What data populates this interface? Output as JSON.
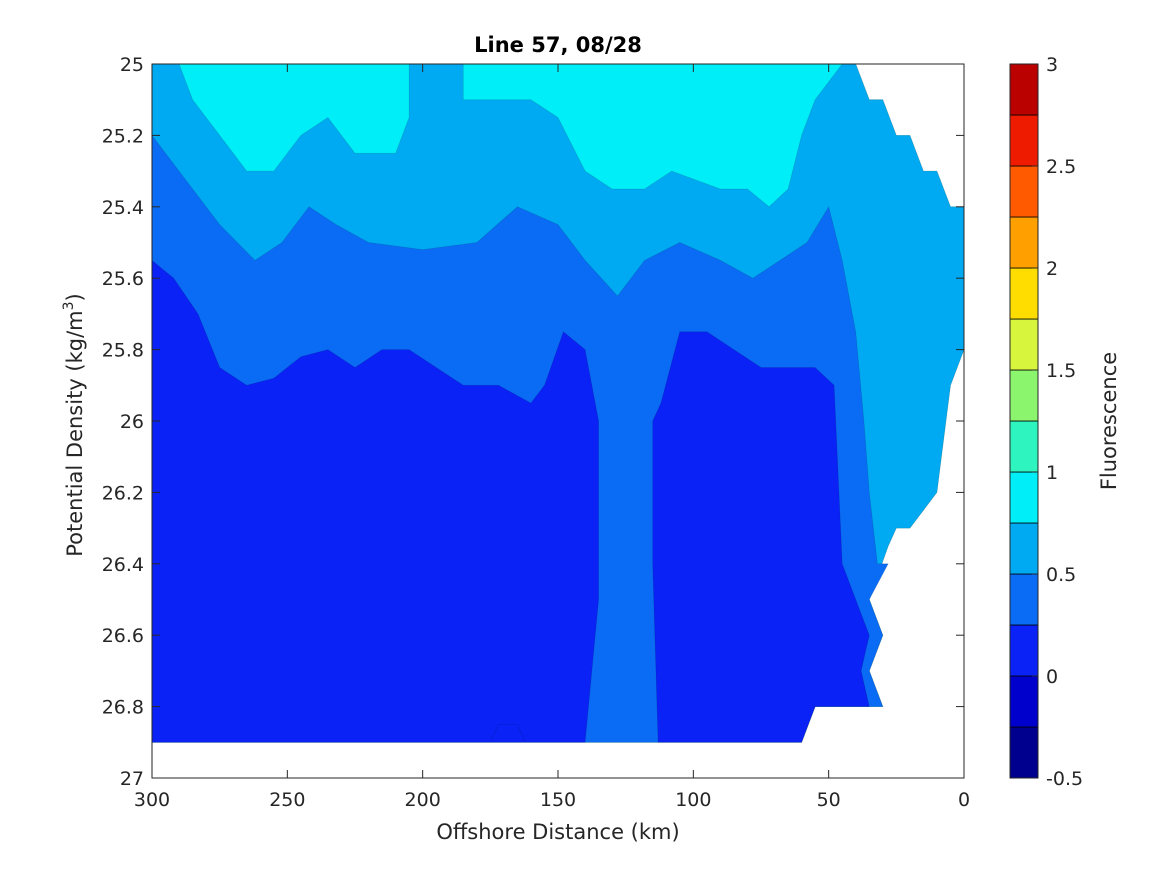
{
  "chart_data": {
    "type": "contour",
    "title": "Line 57, 08/28",
    "xlabel": "Offshore Distance (km)",
    "ylabel_main": "Potential Density (kg/m",
    "ylabel_sup": "3",
    "ylabel_close": ")",
    "colorbar_label": "Fluorescence",
    "x_axis": {
      "range": [
        300,
        0
      ],
      "reversed": true,
      "ticks": [
        300,
        250,
        200,
        150,
        100,
        50,
        0
      ],
      "tick_labels": [
        "300",
        "250",
        "200",
        "150",
        "100",
        "50",
        "0"
      ]
    },
    "y_axis": {
      "range": [
        25,
        27
      ],
      "reversed": true,
      "ticks": [
        25,
        25.2,
        25.4,
        25.6,
        25.8,
        26,
        26.2,
        26.4,
        26.6,
        26.8,
        27
      ],
      "tick_labels": [
        "25",
        "25.2",
        "25.4",
        "25.6",
        "25.8",
        "26",
        "26.2",
        "26.4",
        "26.6",
        "26.8",
        "27"
      ]
    },
    "colorbar": {
      "range": [
        -0.5,
        3
      ],
      "levels": [
        -0.5,
        -0.25,
        0,
        0.25,
        0.5,
        0.75,
        1,
        1.25,
        1.5,
        1.75,
        2,
        2.25,
        2.5,
        2.75,
        3
      ],
      "ticks": [
        -0.5,
        0,
        0.5,
        1,
        1.5,
        2,
        2.5,
        3
      ],
      "tick_labels": [
        "-0.5",
        "0",
        "0.5",
        "1",
        "1.5",
        "2",
        "2.5",
        "3"
      ],
      "colors": [
        "#00008f",
        "#0000cc",
        "#0a22f5",
        "#0a6cf5",
        "#00aaf2",
        "#00eef7",
        "#2ef5c0",
        "#8cf56e",
        "#d6f53c",
        "#ffdd00",
        "#ff9f00",
        "#ff5a00",
        "#ee1b00",
        "#bb0000"
      ]
    },
    "contour_regions": [
      {
        "level": 0.75,
        "points": [
          [
            300,
            25
          ],
          [
            40,
            25
          ],
          [
            35,
            25.1
          ],
          [
            30,
            25.1
          ],
          [
            25,
            25.2
          ],
          [
            20,
            25.2
          ],
          [
            15,
            25.3
          ],
          [
            10,
            25.3
          ],
          [
            5,
            25.4
          ],
          [
            0,
            25.4
          ],
          [
            0,
            25.8
          ],
          [
            5,
            25.9
          ],
          [
            10,
            26.2
          ],
          [
            20,
            26.3
          ],
          [
            25,
            26.3
          ],
          [
            28,
            26.35
          ],
          [
            35,
            26.5
          ],
          [
            30,
            26.6
          ],
          [
            35,
            26.7
          ],
          [
            30,
            26.8
          ],
          [
            55,
            26.8
          ],
          [
            60,
            26.9
          ],
          [
            300,
            26.9
          ]
        ]
      },
      {
        "level": 0.5,
        "points": [
          [
            300,
            25
          ],
          [
            290,
            25
          ],
          [
            285,
            25.1
          ],
          [
            275,
            25.2
          ],
          [
            265,
            25.3
          ],
          [
            255,
            25.3
          ],
          [
            245,
            25.2
          ],
          [
            235,
            25.15
          ],
          [
            225,
            25.25
          ],
          [
            210,
            25.25
          ],
          [
            205,
            25.15
          ],
          [
            205,
            25
          ],
          [
            185,
            25
          ],
          [
            185,
            25.1
          ],
          [
            160,
            25.1
          ],
          [
            150,
            25.15
          ],
          [
            140,
            25.3
          ],
          [
            130,
            25.35
          ],
          [
            118,
            25.35
          ],
          [
            108,
            25.3
          ],
          [
            90,
            25.35
          ],
          [
            80,
            25.35
          ],
          [
            72,
            25.4
          ],
          [
            65,
            25.35
          ],
          [
            60,
            25.2
          ],
          [
            55,
            25.1
          ],
          [
            45,
            25
          ],
          [
            40,
            25
          ],
          [
            35,
            25.1
          ],
          [
            30,
            25.1
          ],
          [
            25,
            25.2
          ],
          [
            20,
            25.2
          ],
          [
            15,
            25.3
          ],
          [
            10,
            25.3
          ],
          [
            5,
            25.4
          ],
          [
            0,
            25.4
          ],
          [
            0,
            25.8
          ],
          [
            5,
            25.9
          ],
          [
            10,
            26.2
          ],
          [
            20,
            26.3
          ],
          [
            25,
            26.3
          ],
          [
            28,
            26.35
          ],
          [
            35,
            26.5
          ],
          [
            30,
            26.6
          ],
          [
            35,
            26.7
          ],
          [
            30,
            26.8
          ],
          [
            55,
            26.8
          ],
          [
            60,
            26.9
          ],
          [
            300,
            26.9
          ]
        ]
      },
      {
        "level": 0.25,
        "points": [
          [
            300,
            25.2
          ],
          [
            295,
            25.25
          ],
          [
            285,
            25.35
          ],
          [
            275,
            25.45
          ],
          [
            262,
            25.55
          ],
          [
            252,
            25.5
          ],
          [
            242,
            25.4
          ],
          [
            232,
            25.45
          ],
          [
            220,
            25.5
          ],
          [
            200,
            25.52
          ],
          [
            180,
            25.5
          ],
          [
            165,
            25.4
          ],
          [
            150,
            25.45
          ],
          [
            140,
            25.55
          ],
          [
            128,
            25.65
          ],
          [
            118,
            25.55
          ],
          [
            105,
            25.5
          ],
          [
            90,
            25.55
          ],
          [
            78,
            25.6
          ],
          [
            68,
            25.55
          ],
          [
            58,
            25.5
          ],
          [
            50,
            25.4
          ],
          [
            45,
            25.55
          ],
          [
            40,
            25.75
          ],
          [
            37,
            26
          ],
          [
            35,
            26.2
          ],
          [
            32,
            26.4
          ],
          [
            28,
            26.4
          ],
          [
            35,
            26.5
          ],
          [
            30,
            26.6
          ],
          [
            35,
            26.7
          ],
          [
            30,
            26.8
          ],
          [
            55,
            26.8
          ],
          [
            60,
            26.9
          ],
          [
            300,
            26.9
          ]
        ]
      },
      {
        "level": 0,
        "points": [
          [
            300,
            25.55
          ],
          [
            292,
            25.6
          ],
          [
            283,
            25.7
          ],
          [
            275,
            25.85
          ],
          [
            265,
            25.9
          ],
          [
            255,
            25.88
          ],
          [
            245,
            25.82
          ],
          [
            235,
            25.8
          ],
          [
            225,
            25.85
          ],
          [
            215,
            25.8
          ],
          [
            205,
            25.8
          ],
          [
            195,
            25.85
          ],
          [
            185,
            25.9
          ],
          [
            172,
            25.9
          ],
          [
            160,
            25.95
          ],
          [
            155,
            25.9
          ],
          [
            148,
            25.75
          ],
          [
            140,
            25.8
          ],
          [
            135,
            26
          ],
          [
            135,
            26.5
          ],
          [
            140,
            26.9
          ],
          [
            175,
            26.9
          ],
          [
            172,
            26.85
          ],
          [
            165,
            26.85
          ],
          [
            162,
            26.9
          ],
          [
            300,
            26.9
          ]
        ]
      },
      {
        "level": 0,
        "points": [
          [
            113,
            26.9
          ],
          [
            115,
            26.4
          ],
          [
            115,
            26
          ],
          [
            112,
            25.95
          ],
          [
            105,
            25.75
          ],
          [
            95,
            25.75
          ],
          [
            85,
            25.8
          ],
          [
            75,
            25.85
          ],
          [
            65,
            25.85
          ],
          [
            55,
            25.85
          ],
          [
            48,
            25.9
          ],
          [
            45,
            26.4
          ],
          [
            40,
            26.5
          ],
          [
            35,
            26.6
          ],
          [
            38,
            26.7
          ],
          [
            35,
            26.8
          ],
          [
            55,
            26.8
          ],
          [
            60,
            26.9
          ]
        ]
      }
    ]
  }
}
